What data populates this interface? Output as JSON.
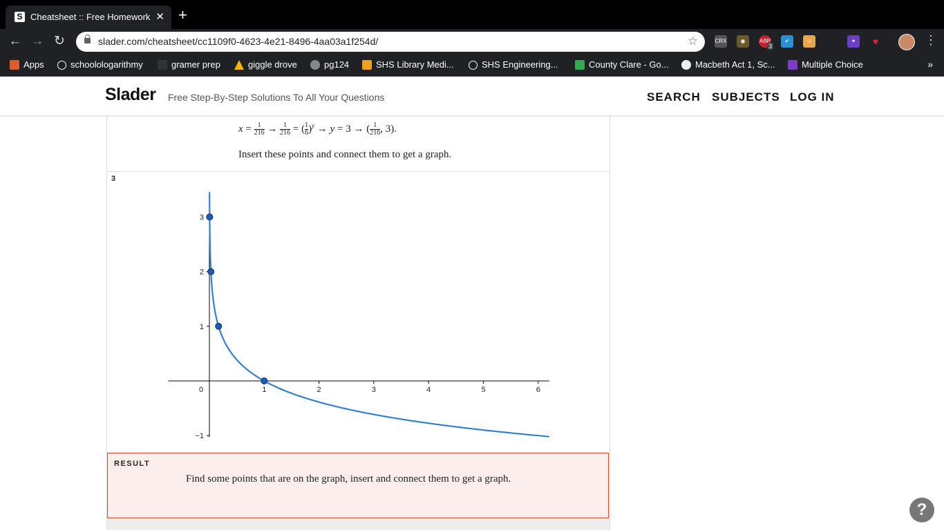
{
  "browser": {
    "tab_title": "Cheatsheet :: Free Homework I",
    "tab_favicon": "S",
    "url": "slader.com/cheatsheet/cc1109f0-4623-4e21-8496-4aa03a1f254d/",
    "extensions": [
      "CRX",
      "ABP",
      "3"
    ],
    "bookmarks": [
      "Apps",
      "schoolologarithmy",
      "gramer prep",
      "giggle drove",
      "pg124",
      "SHS Library Medi...",
      "SHS Engineering...",
      "County Clare - Go...",
      "Macbeth Act 1, Sc...",
      "Multiple Choice"
    ],
    "bookmark_more": "»"
  },
  "site": {
    "logo": "Slader",
    "tagline": "Free Step-By-Step Solutions To All Your Questions",
    "nav": [
      "SEARCH",
      "SUBJECTS",
      "LOG IN"
    ]
  },
  "step2": {
    "equation": "x = 1/216 → 1/216 = (1/6)^y → y = 3 → (1/216, 3).",
    "text": "Insert these points and connect them to get a graph."
  },
  "step3": {
    "number": "3"
  },
  "chart_data": {
    "type": "line",
    "function": "y = log_{1/6}(x)",
    "xlim": [
      -0.75,
      6.2
    ],
    "ylim": [
      -1,
      3.45
    ],
    "x_ticks": [
      0,
      1,
      2,
      3,
      4,
      5,
      6
    ],
    "y_ticks": [
      -1,
      1,
      2,
      3
    ],
    "series": [
      {
        "curve": "y = log_{1/6}(x)",
        "x_range": [
          0.0015,
          6.2
        ],
        "color": "#3281d0"
      }
    ],
    "points": [
      {
        "x": 0.0046,
        "y": 3
      },
      {
        "x": 0.0278,
        "y": 2
      },
      {
        "x": 0.1667,
        "y": 1
      },
      {
        "x": 1,
        "y": 0
      }
    ],
    "point_color": "#1a5cb8",
    "grid": false
  },
  "result": {
    "label": "RESULT",
    "text": "Find some points that are on the graph, insert and connect them to get a graph."
  },
  "help": "?"
}
